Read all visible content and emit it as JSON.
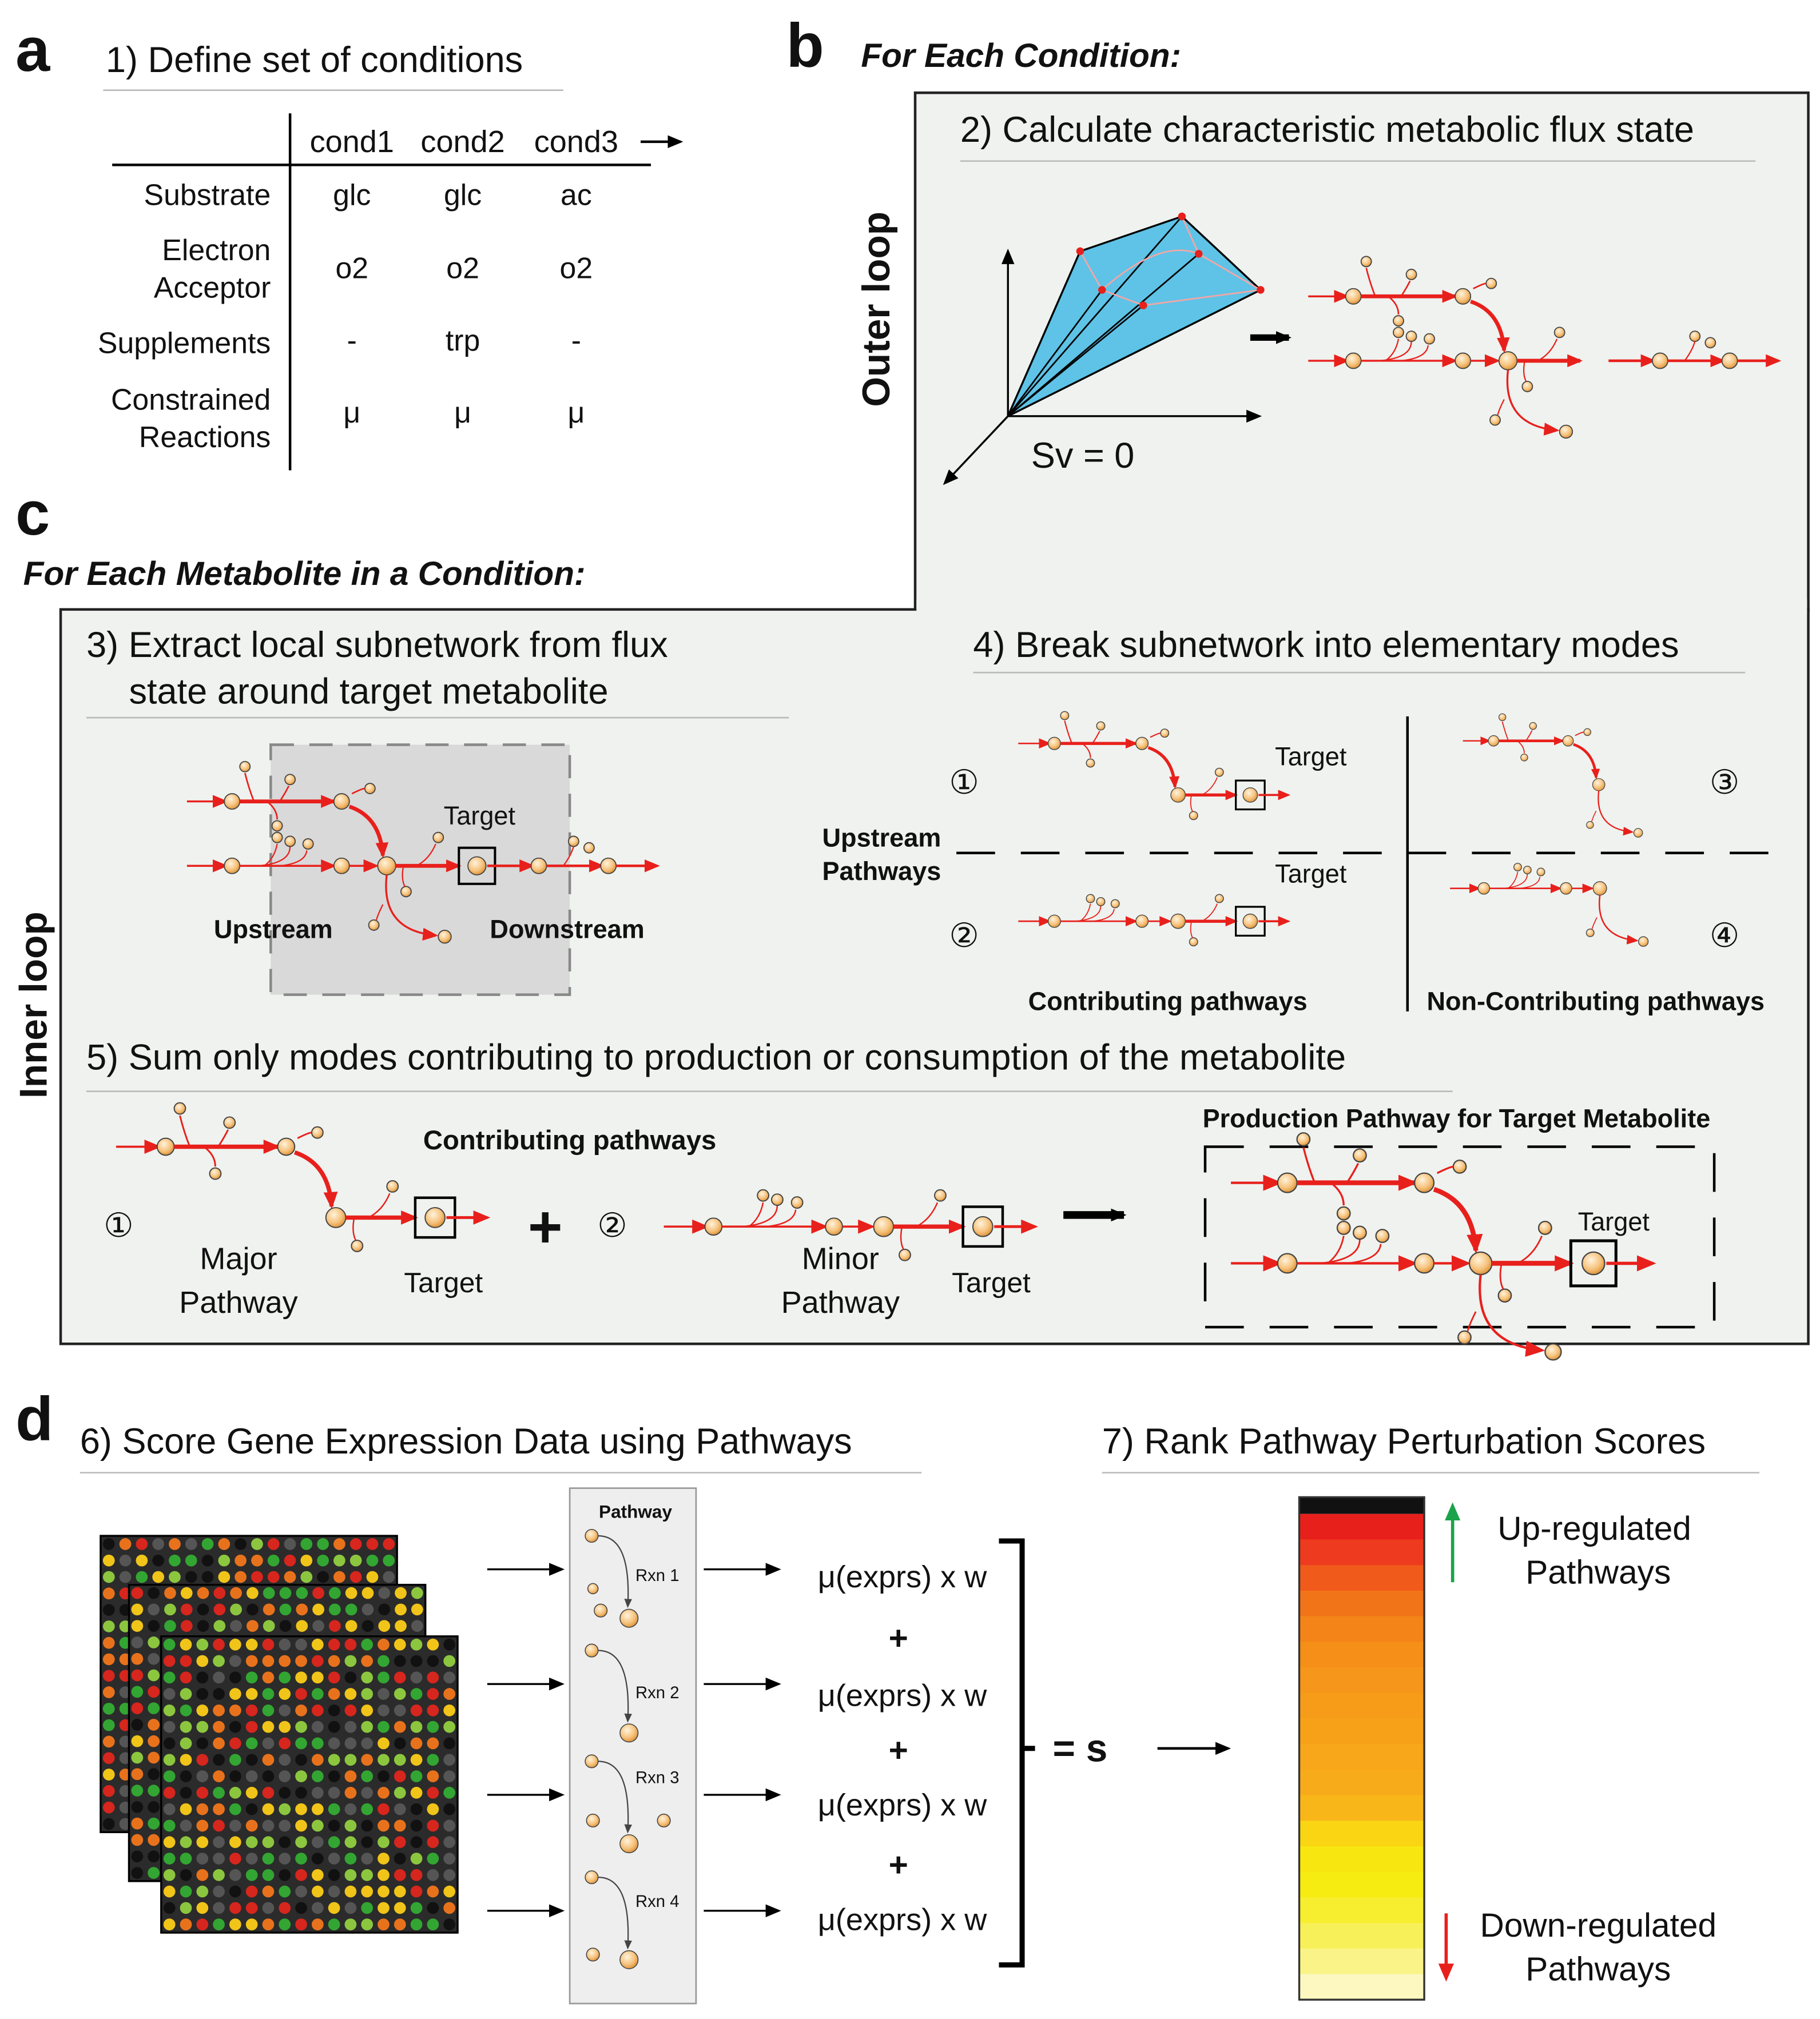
{
  "panel_a": {
    "label": "a",
    "title": "1) Define set of conditions",
    "columns": [
      "cond1",
      "cond2",
      "cond3"
    ],
    "rows": [
      {
        "label": [
          "Substrate"
        ],
        "cells": [
          "glc",
          "glc",
          "ac"
        ]
      },
      {
        "label": [
          "Electron",
          "Acceptor"
        ],
        "cells": [
          "o2",
          "o2",
          "o2"
        ]
      },
      {
        "label": [
          "Supplements"
        ],
        "cells": [
          "-",
          "trp",
          "-"
        ]
      },
      {
        "label": [
          "Constrained",
          "Reactions"
        ],
        "cells": [
          "μ",
          "μ",
          "μ"
        ]
      }
    ]
  },
  "panel_b": {
    "label": "b",
    "heading": "For Each Condition:",
    "loop": "Outer loop",
    "title": "2) Calculate characteristic metabolic flux state",
    "equation": "Sv = 0"
  },
  "panel_c": {
    "label": "c",
    "heading": "For Each Metabolite in a Condition:",
    "loop": "Inner loop",
    "step3": {
      "title": [
        "3) Extract local subnetwork from flux",
        "state around target metabolite"
      ],
      "target": "Target",
      "upstream": "Upstream",
      "downstream": "Downstream"
    },
    "step4": {
      "title": "4) Break subnetwork into elementary modes",
      "group": [
        "Upstream",
        "Pathways"
      ],
      "modes": [
        "①",
        "②",
        "③",
        "④"
      ],
      "targets": [
        "Target",
        "Target"
      ],
      "contributing": "Contributing pathways",
      "non_contributing": "Non-Contributing pathways"
    },
    "step5": {
      "title": "5) Sum only modes contributing to production or consumption of the metabolite",
      "heading": "Contributing pathways",
      "major": {
        "number": "①",
        "label": [
          "Major",
          "Pathway"
        ],
        "target": "Target"
      },
      "plus": "+",
      "minor": {
        "number": "②",
        "label": [
          "Minor",
          "Pathway"
        ],
        "target": "Target"
      },
      "result": {
        "title": "Production Pathway for Target Metabolite",
        "target": "Target"
      }
    }
  },
  "panel_d": {
    "label": "d",
    "step6": {
      "title": "6) Score Gene Expression Data using Pathways",
      "pathway": "Pathway",
      "reactions": [
        "Rxn 1",
        "Rxn 2",
        "Rxn 3",
        "Rxn 4"
      ],
      "terms": [
        "μ(exprs) x w",
        "μ(exprs) x w",
        "μ(exprs) x w",
        "μ(exprs) x w"
      ],
      "plus": [
        "+",
        "+",
        "+"
      ],
      "result": "= s"
    },
    "step7": {
      "title": "7) Rank Pathway Perturbation Scores",
      "up": [
        "Up-regulated",
        "Pathways"
      ],
      "down": [
        "Down-regulated",
        "Pathways"
      ]
    }
  }
}
